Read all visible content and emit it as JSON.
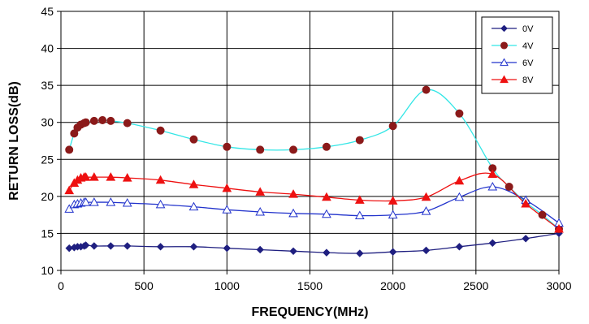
{
  "chart_data": {
    "type": "line",
    "title": "",
    "xlabel": "FREQUENCY(MHz)",
    "ylabel": "RETURN LOSS(dB)",
    "xlim": [
      0,
      3000
    ],
    "ylim": [
      10,
      45
    ],
    "x_ticks": [
      0,
      500,
      1000,
      1500,
      2000,
      2500,
      3000
    ],
    "y_ticks": [
      10,
      15,
      20,
      25,
      30,
      35,
      40,
      45
    ],
    "grid": true,
    "legend_position": "top-right",
    "series": [
      {
        "name": "0V",
        "color": "#1f1f80",
        "marker": "diamond",
        "marker_fill": "#1f1f80",
        "line_color": "#1f1f80",
        "x": [
          50,
          80,
          100,
          120,
          140,
          150,
          200,
          300,
          400,
          600,
          800,
          1000,
          1200,
          1400,
          1600,
          1800,
          2000,
          2200,
          2400,
          2600,
          2800,
          3000
        ],
        "y": [
          13.0,
          13.1,
          13.2,
          13.2,
          13.3,
          13.4,
          13.3,
          13.3,
          13.3,
          13.2,
          13.2,
          13.0,
          12.8,
          12.6,
          12.4,
          12.3,
          12.5,
          12.7,
          13.2,
          13.7,
          14.3,
          15.0
        ]
      },
      {
        "name": "4V",
        "color": "#8b1a1a",
        "marker": "circle",
        "marker_fill": "#8b1a1a",
        "line_color": "#33e6e6",
        "x": [
          50,
          80,
          100,
          120,
          140,
          150,
          200,
          250,
          300,
          400,
          600,
          800,
          1000,
          1200,
          1400,
          1600,
          1800,
          2000,
          2200,
          2400,
          2600,
          2700,
          2800,
          2900,
          3000
        ],
        "y": [
          26.3,
          28.5,
          29.3,
          29.7,
          29.9,
          30.0,
          30.2,
          30.3,
          30.2,
          29.9,
          28.9,
          27.7,
          26.7,
          26.3,
          26.3,
          26.7,
          27.6,
          29.5,
          34.4,
          31.2,
          23.8,
          21.3,
          19.2,
          17.5,
          15.6
        ]
      },
      {
        "name": "6V",
        "color": "#2233cc",
        "marker": "triangle-open",
        "marker_fill": "#ffffff",
        "line_color": "#2233cc",
        "x": [
          50,
          80,
          100,
          120,
          140,
          150,
          200,
          300,
          400,
          600,
          800,
          1000,
          1200,
          1400,
          1600,
          1800,
          2000,
          2200,
          2400,
          2600,
          2800,
          3000
        ],
        "y": [
          18.3,
          18.9,
          19.0,
          19.1,
          19.2,
          19.2,
          19.2,
          19.2,
          19.1,
          18.9,
          18.6,
          18.2,
          17.9,
          17.7,
          17.6,
          17.4,
          17.5,
          18.0,
          19.9,
          21.3,
          19.5,
          16.4
        ]
      },
      {
        "name": "8V",
        "color": "#ee1111",
        "marker": "triangle",
        "marker_fill": "#ee1111",
        "line_color": "#ee1111",
        "x": [
          50,
          80,
          100,
          120,
          140,
          150,
          200,
          300,
          400,
          600,
          800,
          1000,
          1200,
          1400,
          1600,
          1800,
          2000,
          2200,
          2400,
          2600,
          2800,
          3000
        ],
        "y": [
          20.8,
          21.8,
          22.2,
          22.5,
          22.6,
          22.6,
          22.6,
          22.6,
          22.5,
          22.2,
          21.6,
          21.1,
          20.6,
          20.3,
          19.9,
          19.5,
          19.4,
          19.9,
          22.1,
          23.0,
          19.0,
          15.6
        ]
      }
    ]
  }
}
